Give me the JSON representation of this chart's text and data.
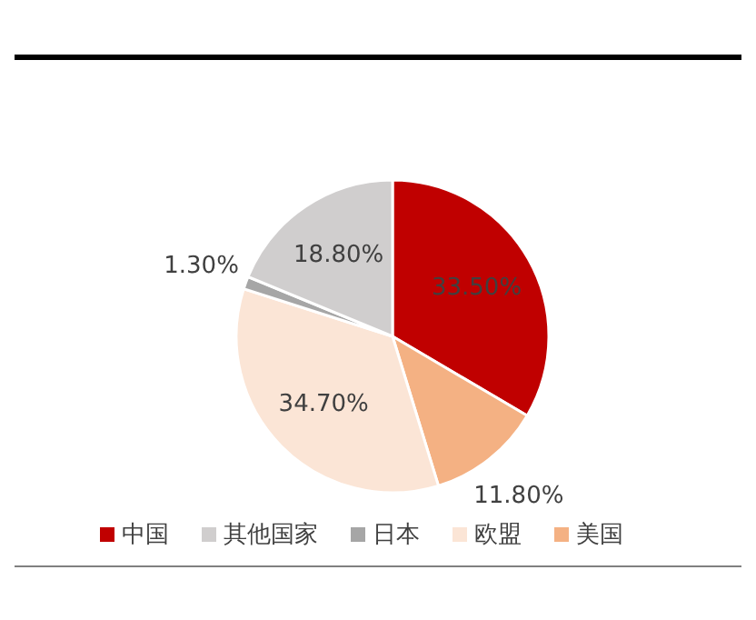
{
  "chart_data": {
    "type": "pie",
    "categories": [
      "中国",
      "美国",
      "欧盟",
      "日本",
      "其他国家"
    ],
    "values": [
      33.5,
      11.8,
      34.7,
      1.3,
      18.8
    ],
    "colors": [
      "#c00000",
      "#f4b183",
      "#fbe5d6",
      "#a6a6a6",
      "#d0cece"
    ],
    "value_labels": [
      "33.50%",
      "11.80%",
      "34.70%",
      "1.30%",
      "18.80%"
    ],
    "legend": "bottom"
  }
}
